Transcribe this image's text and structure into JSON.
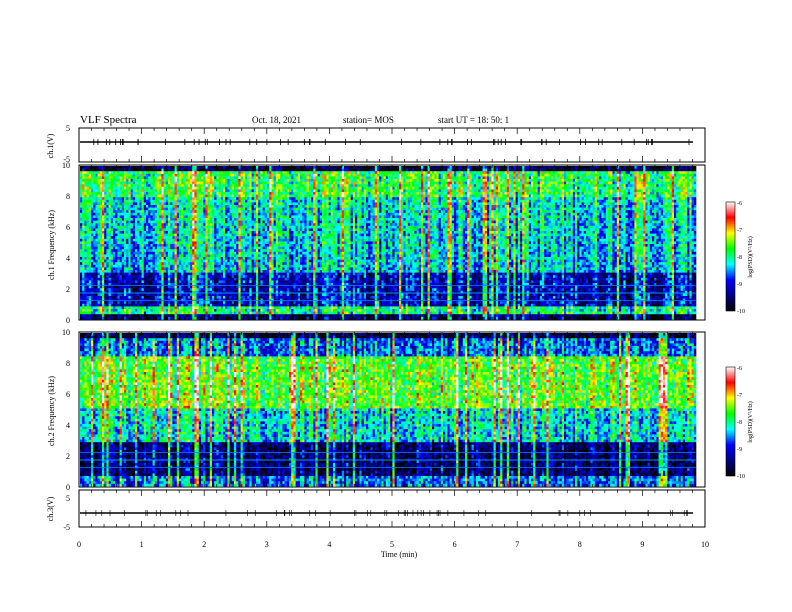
{
  "header": {
    "title": "VLF Spectra",
    "date": "Oct. 18, 2021",
    "station": "station= MOS",
    "start": "start  UT =   18: 50: 1"
  },
  "colorbar": {
    "ticks": [
      "-6",
      "-7",
      "-8",
      "-9",
      "-10"
    ],
    "label": "log(PSD)(V²/Hz)",
    "stops": [
      "#ffffff",
      "#ff0000",
      "#ffff00",
      "#00ff00",
      "#00ffff",
      "#0000ff",
      "#000080",
      "#000000"
    ]
  },
  "chart_data": [
    {
      "type": "line",
      "panel": "ch.1(V)",
      "ylabel": "ch.1(V)",
      "ylim": [
        -5,
        5
      ],
      "yticks": [
        "5",
        "-5"
      ],
      "xlim": [
        0,
        10
      ],
      "series": [
        {
          "x": [
            0,
            10
          ],
          "y": [
            0,
            0
          ]
        }
      ]
    },
    {
      "type": "heatmap",
      "panel": "ch.1 spectrogram",
      "ylabel": "ch.1 Frequency (kHz)",
      "ylim": [
        0,
        10
      ],
      "yticks": [
        "0",
        "2",
        "4",
        "6",
        "8",
        "10"
      ],
      "xlim": [
        0,
        9.85
      ],
      "zlabel": "log(PSD)(V²/Hz)",
      "zlim": [
        -10,
        -6
      ]
    },
    {
      "type": "heatmap",
      "panel": "ch.2 spectrogram",
      "ylabel": "ch.2 Frequency (kHz)",
      "ylim": [
        0,
        10
      ],
      "yticks": [
        "0",
        "2",
        "4",
        "6",
        "8",
        "10"
      ],
      "xlim": [
        0,
        9.85
      ],
      "zlabel": "log(PSD)(V²/Hz)",
      "zlim": [
        -10,
        -6
      ]
    },
    {
      "type": "line",
      "panel": "ch.3(V)",
      "ylabel": "ch.3(V)",
      "ylim": [
        -5,
        5
      ],
      "yticks": [
        "5",
        "-5"
      ],
      "xlim": [
        0,
        10
      ],
      "series": [
        {
          "x": [
            0,
            10
          ],
          "y": [
            0,
            0
          ]
        }
      ]
    }
  ],
  "xaxis": {
    "label": "Time (min)",
    "ticks": [
      "0",
      "1",
      "2",
      "3",
      "4",
      "5",
      "6",
      "7",
      "8",
      "9",
      "10"
    ]
  }
}
